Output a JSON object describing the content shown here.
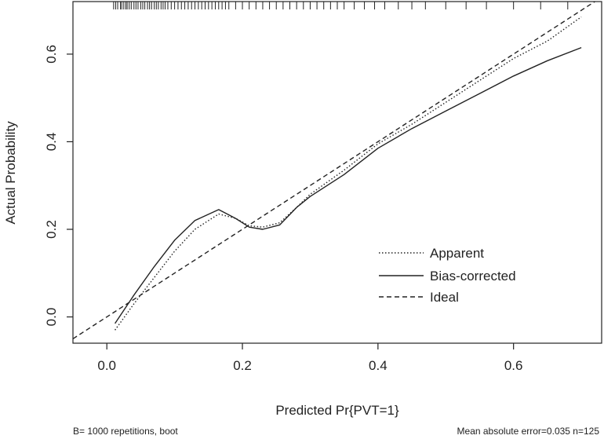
{
  "chart_data": {
    "type": "line",
    "xlabel": "Predicted Pr{PVT=1}",
    "ylabel": "Actual Probability",
    "xlim": [
      -0.05,
      0.73
    ],
    "ylim": [
      -0.06,
      0.72
    ],
    "x_ticks": [
      0.0,
      0.2,
      0.4,
      0.6
    ],
    "y_ticks": [
      0.0,
      0.2,
      0.4,
      0.6
    ],
    "x_tick_labels": [
      "0.0",
      "0.2",
      "0.4",
      "0.6"
    ],
    "y_tick_labels": [
      "0.0",
      "0.2",
      "0.4",
      "0.6"
    ],
    "legend_position": "bottom-right",
    "series": [
      {
        "name": "Apparent",
        "style": "dotted",
        "x": [
          0.012,
          0.04,
          0.07,
          0.1,
          0.13,
          0.165,
          0.19,
          0.21,
          0.23,
          0.255,
          0.28,
          0.3,
          0.35,
          0.4,
          0.45,
          0.5,
          0.55,
          0.6,
          0.65,
          0.7
        ],
        "y": [
          -0.03,
          0.03,
          0.09,
          0.15,
          0.2,
          0.235,
          0.225,
          0.208,
          0.205,
          0.215,
          0.25,
          0.28,
          0.335,
          0.395,
          0.44,
          0.49,
          0.54,
          0.59,
          0.63,
          0.685
        ]
      },
      {
        "name": "Bias-corrected",
        "style": "solid",
        "x": [
          0.012,
          0.04,
          0.07,
          0.1,
          0.13,
          0.165,
          0.19,
          0.21,
          0.23,
          0.255,
          0.28,
          0.3,
          0.35,
          0.4,
          0.45,
          0.5,
          0.55,
          0.6,
          0.65,
          0.7
        ],
        "y": [
          -0.015,
          0.05,
          0.115,
          0.175,
          0.22,
          0.245,
          0.225,
          0.205,
          0.2,
          0.21,
          0.25,
          0.275,
          0.325,
          0.385,
          0.43,
          0.47,
          0.51,
          0.55,
          0.585,
          0.615
        ]
      },
      {
        "name": "Ideal",
        "style": "dashed",
        "x": [
          -0.05,
          0.73
        ],
        "y": [
          -0.05,
          0.73
        ]
      }
    ],
    "rug_x": [
      0.01,
      0.013,
      0.016,
      0.02,
      0.022,
      0.025,
      0.028,
      0.03,
      0.033,
      0.036,
      0.04,
      0.043,
      0.046,
      0.05,
      0.053,
      0.056,
      0.06,
      0.063,
      0.066,
      0.07,
      0.073,
      0.076,
      0.08,
      0.083,
      0.086,
      0.09,
      0.095,
      0.1,
      0.105,
      0.11,
      0.115,
      0.12,
      0.125,
      0.13,
      0.135,
      0.14,
      0.145,
      0.15,
      0.155,
      0.16,
      0.165,
      0.17,
      0.175,
      0.18,
      0.19,
      0.2,
      0.21,
      0.22,
      0.23,
      0.24,
      0.25,
      0.26,
      0.27,
      0.28,
      0.29,
      0.3,
      0.31,
      0.32,
      0.33,
      0.34,
      0.35,
      0.365,
      0.38,
      0.395,
      0.41,
      0.43,
      0.45,
      0.47,
      0.5,
      0.53,
      0.56,
      0.6,
      0.64,
      0.68
    ],
    "footnote_left": "B= 1000 repetitions, boot",
    "footnote_right": "Mean absolute error=0.035 n=125"
  }
}
